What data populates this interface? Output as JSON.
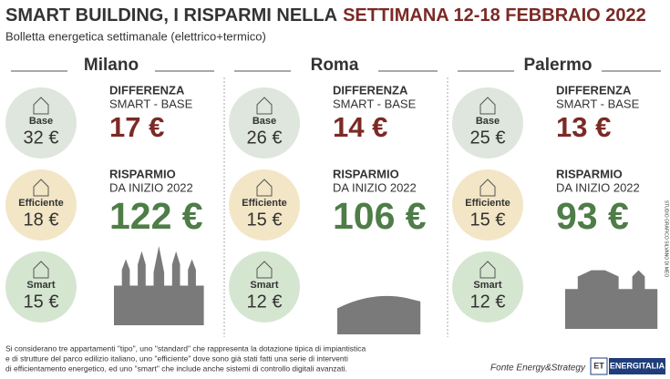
{
  "header": {
    "title_main": "SMART BUILDING, I RISPARMI NELLA",
    "title_highlight": "SETTIMANA 12-18 FEBBRAIO 2022",
    "subtitle": "Bolletta energetica settimanale (elettrico+termico)"
  },
  "cities": [
    {
      "name": "Milano",
      "base_label": "Base",
      "base_value": "32 €",
      "efficient_label": "Efficiente",
      "efficient_value": "18 €",
      "smart_label": "Smart",
      "smart_value": "15 €",
      "difference_title": "DIFFERENZA",
      "difference_subtitle": "SMART - BASE",
      "difference_value": "17 €",
      "savings_title": "RISPARMIO",
      "savings_subtitle": "DA INIZIO 2022",
      "savings_value": "122 €"
    },
    {
      "name": "Roma",
      "base_label": "Base",
      "base_value": "26 €",
      "efficient_label": "Efficiente",
      "efficient_value": "15 €",
      "smart_label": "Smart",
      "smart_value": "12 €",
      "difference_title": "DIFFERENZA",
      "difference_subtitle": "SMART - BASE",
      "difference_value": "14 €",
      "savings_title": "RISPARMIO",
      "savings_subtitle": "DA INIZIO 2022",
      "savings_value": "106 €"
    },
    {
      "name": "Palermo",
      "base_label": "Base",
      "base_value": "25 €",
      "efficient_label": "Efficiente",
      "efficient_value": "15 €",
      "smart_label": "Smart",
      "smart_value": "12 €",
      "difference_title": "DIFFERENZA",
      "difference_subtitle": "SMART - BASE",
      "difference_value": "13 €",
      "savings_title": "RISPARMIO",
      "savings_subtitle": "DA INIZIO 2022",
      "savings_value": "93 €"
    }
  ],
  "footer": {
    "note_lines": [
      "Si considerano tre appartamenti \"tipo\", uno \"standard\" che rappresenta la dotazione tipica di impiantistica",
      "e di strutture del parco edilizio italiano, uno \"efficiente\" dove sono già stati fatti una serie di interventi",
      "di efficientamento energetico, ed uno \"smart\" che include anche sistemi di controllo digitali avanzati."
    ],
    "source": "Fonte Energy&Strategy",
    "logo": "ENERGITALIA",
    "credit": "STUDIO GRAFICO SILVANO DI MEO"
  }
}
